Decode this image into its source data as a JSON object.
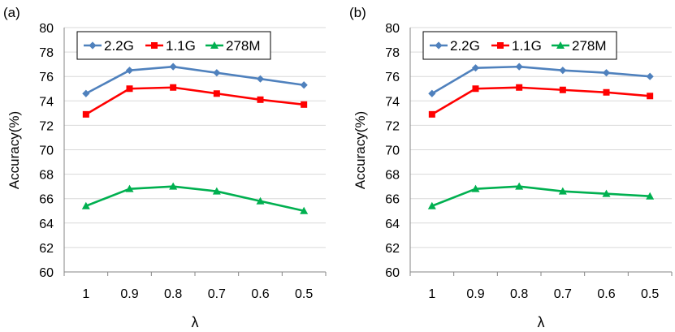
{
  "chart_data": [
    {
      "type": "line",
      "panel_label": "(a)",
      "categories": [
        "1",
        "0.9",
        "0.8",
        "0.7",
        "0.6",
        "0.5"
      ],
      "xlabel": "λ",
      "ylabel": "Accuracy(%)",
      "ylim": [
        60,
        80
      ],
      "yticks": [
        "60",
        "62",
        "64",
        "66",
        "68",
        "70",
        "72",
        "74",
        "76",
        "78",
        "80"
      ],
      "grid": "horizontal",
      "legend": "top-left",
      "series": [
        {
          "name": "2.2G",
          "color": "#4f81bd",
          "marker": "diamond",
          "values": [
            74.6,
            76.5,
            76.8,
            76.3,
            75.8,
            75.3
          ]
        },
        {
          "name": "1.1G",
          "color": "#ff0000",
          "marker": "square",
          "values": [
            72.9,
            75.0,
            75.1,
            74.6,
            74.1,
            73.7
          ]
        },
        {
          "name": "278M",
          "color": "#00b050",
          "marker": "triangle",
          "values": [
            65.4,
            66.8,
            67.0,
            66.6,
            65.8,
            65.0
          ]
        }
      ]
    },
    {
      "type": "line",
      "panel_label": "(b)",
      "categories": [
        "1",
        "0.9",
        "0.8",
        "0.7",
        "0.6",
        "0.5"
      ],
      "xlabel": "λ",
      "ylabel": "Accuracy(%)",
      "ylim": [
        60,
        80
      ],
      "yticks": [
        "60",
        "62",
        "64",
        "66",
        "68",
        "70",
        "72",
        "74",
        "76",
        "78",
        "80"
      ],
      "grid": "horizontal",
      "legend": "top-left",
      "series": [
        {
          "name": "2.2G",
          "color": "#4f81bd",
          "marker": "diamond",
          "values": [
            74.6,
            76.7,
            76.8,
            76.5,
            76.3,
            76.0
          ]
        },
        {
          "name": "1.1G",
          "color": "#ff0000",
          "marker": "square",
          "values": [
            72.9,
            75.0,
            75.1,
            74.9,
            74.7,
            74.4
          ]
        },
        {
          "name": "278M",
          "color": "#00b050",
          "marker": "triangle",
          "values": [
            65.4,
            66.8,
            67.0,
            66.6,
            66.4,
            66.2
          ]
        }
      ]
    }
  ]
}
